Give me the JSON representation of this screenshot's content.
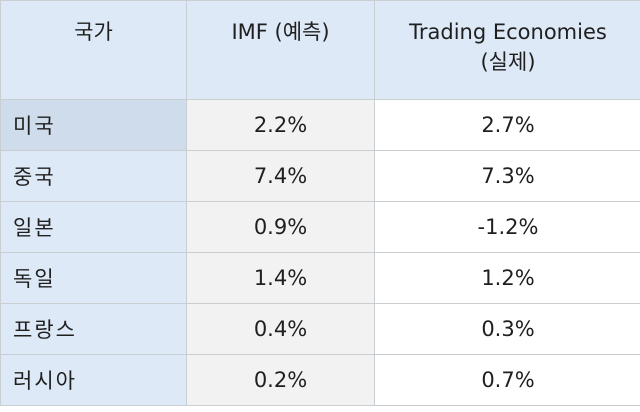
{
  "header": {
    "country": "국가",
    "imf": "IMF (예측)",
    "actual_line1": "Trading Economies",
    "actual_line2": "(실제)"
  },
  "rows": [
    {
      "country": "미국",
      "imf": "2.2%",
      "actual": "2.7%"
    },
    {
      "country": "중국",
      "imf": "7.4%",
      "actual": "7.3%"
    },
    {
      "country": "일본",
      "imf": "0.9%",
      "actual": "-1.2%"
    },
    {
      "country": "독일",
      "imf": "1.4%",
      "actual": "1.2%"
    },
    {
      "country": "프랑스",
      "imf": "0.4%",
      "actual": "0.3%"
    },
    {
      "country": "러시아",
      "imf": "0.2%",
      "actual": "0.7%"
    }
  ]
}
